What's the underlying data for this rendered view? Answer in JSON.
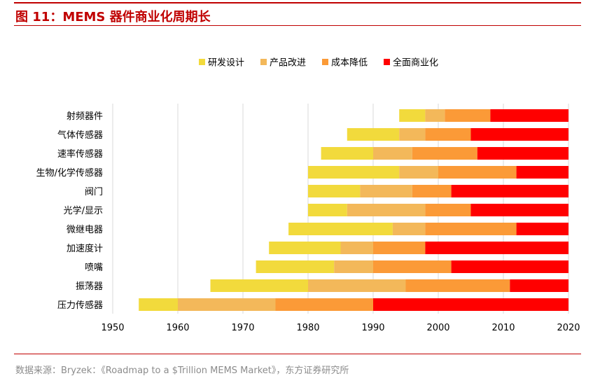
{
  "figure": {
    "title": "图 11：MEMS 器件商业化周期长",
    "source": "数据来源：Bryzek：《Roadmap to a $Trillion MEMS Market》，东方证券研究所"
  },
  "colors": {
    "rule": "#c00000",
    "grid": "#d9d9d9",
    "stages": [
      "#f2da3c",
      "#f3b85a",
      "#fb9a37",
      "#ff0000"
    ]
  },
  "chart_data": {
    "type": "bar",
    "orientation": "horizontal",
    "stacked": true,
    "title": "",
    "xlabel": "",
    "ylabel": "",
    "xlim": [
      1950,
      2020
    ],
    "xticks": [
      "1950",
      "1960",
      "1970",
      "1980",
      "1990",
      "2000",
      "2010",
      "2020"
    ],
    "grid": "vertical",
    "legend_position": "top",
    "stages": [
      "研发设计",
      "产品改进",
      "成本降低",
      "全面商业化"
    ],
    "items": [
      {
        "name": "射频器件",
        "start": 1994,
        "ends": [
          1998,
          2001,
          2008,
          2020
        ]
      },
      {
        "name": "气体传感器",
        "start": 1986,
        "ends": [
          1994,
          1998,
          2005,
          2020
        ]
      },
      {
        "name": "速率传感器",
        "start": 1982,
        "ends": [
          1990,
          1996,
          2006,
          2020
        ]
      },
      {
        "name": "生物/化学传感器",
        "start": 1980,
        "ends": [
          1994,
          2000,
          2012,
          2020
        ]
      },
      {
        "name": "阀门",
        "start": 1980,
        "ends": [
          1988,
          1996,
          2002,
          2020
        ]
      },
      {
        "name": "光学/显示",
        "start": 1980,
        "ends": [
          1986,
          1998,
          2005,
          2020
        ]
      },
      {
        "name": "微继电器",
        "start": 1977,
        "ends": [
          1993,
          1998,
          2012,
          2020
        ]
      },
      {
        "name": "加速度计",
        "start": 1974,
        "ends": [
          1985,
          1990,
          1998,
          2020
        ]
      },
      {
        "name": "喷嘴",
        "start": 1972,
        "ends": [
          1984,
          1990,
          2002,
          2020
        ]
      },
      {
        "name": "振荡器",
        "start": 1965,
        "ends": [
          1980,
          1995,
          2011,
          2020
        ]
      },
      {
        "name": "压力传感器",
        "start": 1954,
        "ends": [
          1960,
          1975,
          1990,
          2020
        ]
      }
    ]
  }
}
